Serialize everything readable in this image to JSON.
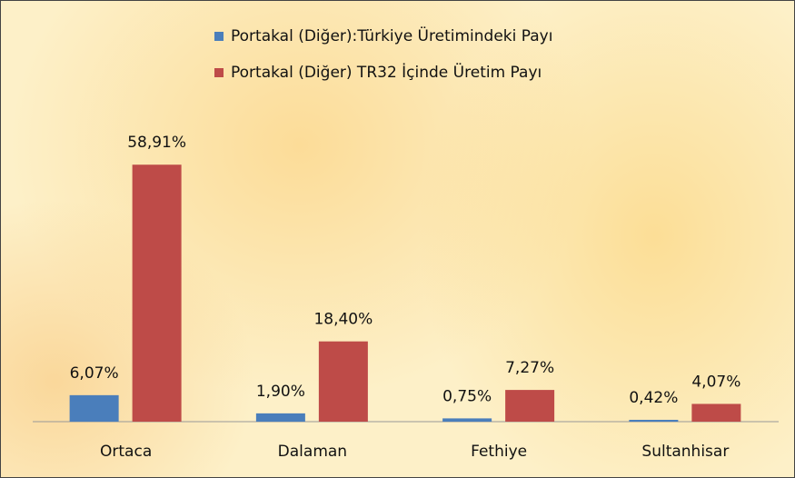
{
  "chart_data": {
    "type": "bar",
    "categories": [
      "Ortaca",
      "Dalaman",
      "Fethiye",
      "Sultanhisar"
    ],
    "series": [
      {
        "name": "Portakal (Diğer):Türkiye Üretimindeki Payı",
        "color": "#4a7ebb",
        "values": [
          6.07,
          1.9,
          0.75,
          0.42
        ],
        "value_labels": [
          "6,07%",
          "1,90%",
          "0,75%",
          "0,42%"
        ]
      },
      {
        "name": "Portakal (Diğer) TR32 İçinde Üretim Payı",
        "color": "#be4b48",
        "values": [
          58.91,
          18.4,
          7.27,
          4.07
        ],
        "value_labels": [
          "58,91%",
          "18,40%",
          "7,27%",
          "4,07%"
        ]
      }
    ],
    "ylim": [
      0,
      60
    ]
  }
}
